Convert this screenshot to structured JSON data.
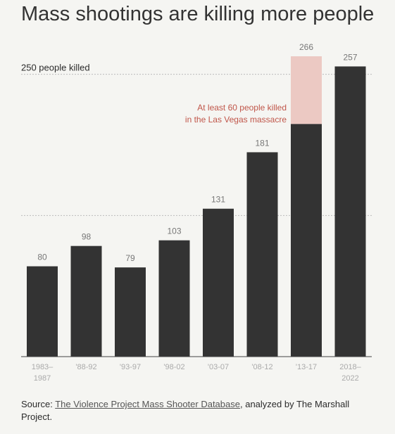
{
  "title": "Mass shootings are killing more people",
  "source": {
    "prefix": "Source: ",
    "link_text": "The Violence Project Mass Shooter Database",
    "suffix": ", analyzed by The Marshall Project."
  },
  "chart_data": {
    "type": "bar",
    "title": "Mass shootings are killing more people",
    "categories": [
      [
        "1983–",
        "1987"
      ],
      [
        "'88-92"
      ],
      [
        "'93-97"
      ],
      [
        "'98-02"
      ],
      [
        "'03-07"
      ],
      [
        "'08-12"
      ],
      [
        "'13-17"
      ],
      [
        "2018–",
        "2022"
      ]
    ],
    "values": [
      80,
      98,
      79,
      103,
      131,
      181,
      266,
      257
    ],
    "highlight": {
      "category_index": 6,
      "portion": 60,
      "color": "#ecc9c3"
    },
    "reference_lines": [
      {
        "value": 250,
        "label": "250 people killed"
      },
      {
        "value": 125,
        "label": ""
      }
    ],
    "annotation": {
      "lines": [
        "At least 60 people killed",
        "in the Las Vegas massacre"
      ],
      "color": "#c0564a"
    },
    "ylim": [
      0,
      266
    ],
    "grid": false,
    "colors": {
      "bar": "#333333",
      "value_label": "#777777",
      "tick_label": "#aaaaaa",
      "reference_line": "#bbbbbb",
      "axis": "#444444"
    }
  }
}
